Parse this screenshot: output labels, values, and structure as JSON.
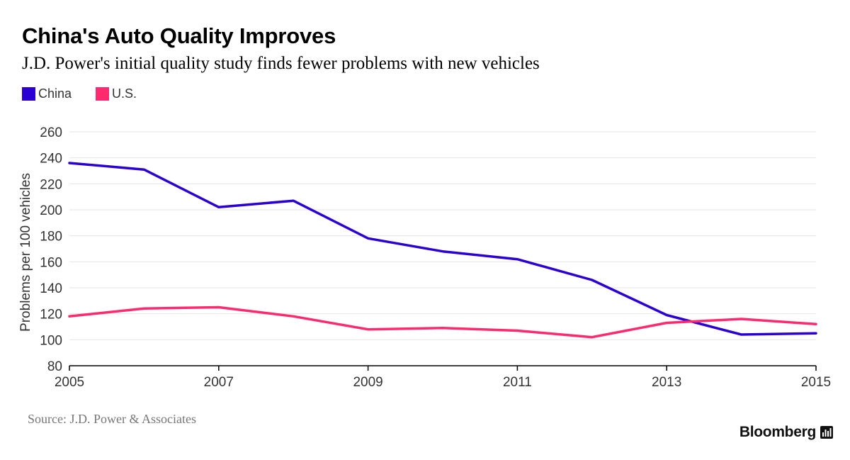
{
  "header": {
    "title": "China's Auto Quality Improves",
    "subtitle": "J.D. Power's initial quality study finds fewer problems with new vehicles"
  },
  "footer": {
    "source": "Source: J.D. Power & Associates",
    "brand": "Bloomberg"
  },
  "colors": {
    "china": "#2a00d5",
    "us": "#ff2a6d",
    "grid": "#e6e6e6",
    "axis": "#000000",
    "tick_text": "#333333"
  },
  "chart_data": {
    "type": "line",
    "title": "China's Auto Quality Improves",
    "subtitle": "J.D. Power's initial quality study finds fewer problems with new vehicles",
    "xlabel": "",
    "ylabel": "Problems per 100 vehicles",
    "x": [
      2005,
      2006,
      2007,
      2008,
      2009,
      2010,
      2011,
      2012,
      2013,
      2014,
      2015
    ],
    "xlim": [
      2005,
      2015
    ],
    "ylim": [
      80,
      260
    ],
    "xticks": [
      "2005",
      "2007",
      "2009",
      "2011",
      "2013",
      "2015"
    ],
    "xtick_values": [
      2005,
      2007,
      2009,
      2011,
      2013,
      2015
    ],
    "yticks": [
      "80",
      "100",
      "120",
      "140",
      "160",
      "180",
      "200",
      "220",
      "240",
      "260"
    ],
    "ytick_values": [
      80,
      100,
      120,
      140,
      160,
      180,
      200,
      220,
      240,
      260
    ],
    "grid": true,
    "legend_position": "top-left",
    "series": [
      {
        "name": "China",
        "key": "china",
        "values": [
          236,
          231,
          202,
          207,
          178,
          168,
          162,
          146,
          119,
          104,
          105
        ]
      },
      {
        "name": "U.S.",
        "key": "us",
        "values": [
          118,
          124,
          125,
          118,
          108,
          109,
          107,
          102,
          113,
          116,
          112
        ]
      }
    ]
  }
}
